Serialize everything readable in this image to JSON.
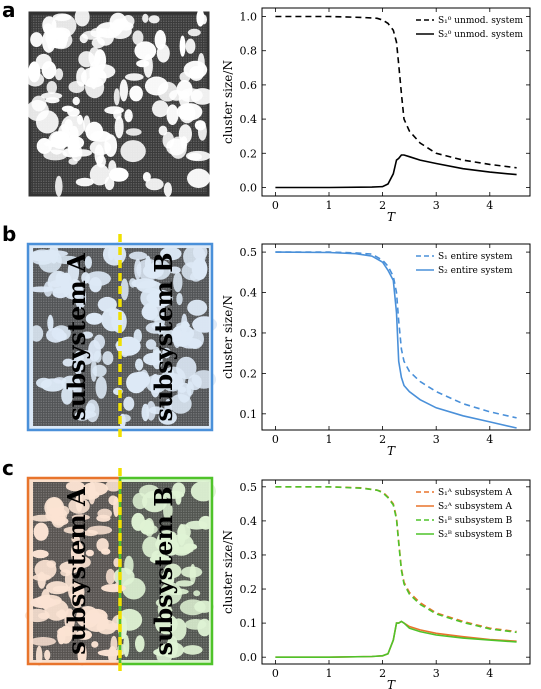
{
  "panels": [
    {
      "letter": "a",
      "lattice": {
        "subsystems": []
      }
    },
    {
      "letter": "b",
      "lattice": {
        "subsystems": [
          "subsystem A",
          "subsystem B"
        ],
        "frame_color": "#4a90d9"
      }
    },
    {
      "letter": "c",
      "lattice": {
        "subsystems": [
          "subsystem A",
          "subsystem B"
        ],
        "frame_colors": [
          "#e8742c",
          "#4fc32a"
        ]
      }
    }
  ],
  "chart_data": [
    {
      "type": "line",
      "xlabel": "T",
      "ylabel": "cluster size/N",
      "xlim": [
        -0.25,
        4.75
      ],
      "ylim": [
        -0.05,
        1.05
      ],
      "xticks": [
        "0",
        "1",
        "2",
        "3",
        "4"
      ],
      "yticks": [
        "0.0",
        "0.2",
        "0.4",
        "0.6",
        "0.8",
        "1.0"
      ],
      "legend_position": "top-right",
      "series": [
        {
          "name": "S₁⁰ unmod. system",
          "color": "#000000",
          "dash": true,
          "x": [
            0,
            1.0,
            1.6,
            1.9,
            2.0,
            2.1,
            2.2,
            2.26,
            2.3,
            2.35,
            2.4,
            2.5,
            2.7,
            3.0,
            3.5,
            4.0,
            4.5
          ],
          "y": [
            1.0,
            1.0,
            0.995,
            0.99,
            0.98,
            0.96,
            0.92,
            0.85,
            0.72,
            0.55,
            0.4,
            0.33,
            0.26,
            0.2,
            0.16,
            0.135,
            0.115
          ]
        },
        {
          "name": "S₂⁰ unmod. system",
          "color": "#000000",
          "dash": false,
          "x": [
            0,
            1.0,
            1.8,
            2.0,
            2.1,
            2.2,
            2.26,
            2.3,
            2.35,
            2.4,
            2.5,
            2.7,
            3.0,
            3.5,
            4.0,
            4.5
          ],
          "y": [
            0.0,
            0.0,
            0.002,
            0.005,
            0.02,
            0.08,
            0.16,
            0.17,
            0.19,
            0.19,
            0.18,
            0.16,
            0.14,
            0.11,
            0.09,
            0.075
          ]
        }
      ]
    },
    {
      "type": "line",
      "xlabel": "T",
      "ylabel": "cluster size/N",
      "xlim": [
        -0.25,
        4.75
      ],
      "ylim": [
        0.06,
        0.52
      ],
      "xticks": [
        "0",
        "1",
        "2",
        "3",
        "4"
      ],
      "yticks": [
        "0.1",
        "0.2",
        "0.3",
        "0.4",
        "0.5"
      ],
      "legend_position": "top-right",
      "series": [
        {
          "name": "S₁ entire system",
          "color": "#4a90d9",
          "dash": true,
          "x": [
            0,
            1.0,
            1.5,
            1.8,
            2.0,
            2.1,
            2.2,
            2.26,
            2.3,
            2.35,
            2.4,
            2.5,
            2.7,
            3.0,
            3.5,
            4.0,
            4.5
          ],
          "y": [
            0.5,
            0.5,
            0.498,
            0.495,
            0.48,
            0.465,
            0.44,
            0.4,
            0.33,
            0.26,
            0.23,
            0.205,
            0.18,
            0.155,
            0.125,
            0.105,
            0.09
          ]
        },
        {
          "name": "S₂ entire system",
          "color": "#4a90d9",
          "dash": false,
          "x": [
            0,
            1.0,
            1.5,
            1.8,
            2.0,
            2.1,
            2.2,
            2.26,
            2.3,
            2.35,
            2.4,
            2.5,
            2.7,
            3.0,
            3.5,
            4.0,
            4.5
          ],
          "y": [
            0.5,
            0.499,
            0.496,
            0.49,
            0.475,
            0.455,
            0.43,
            0.35,
            0.23,
            0.19,
            0.17,
            0.155,
            0.135,
            0.115,
            0.095,
            0.08,
            0.065
          ]
        }
      ]
    },
    {
      "type": "line",
      "xlabel": "T",
      "ylabel": "cluster size/N",
      "xlim": [
        -0.25,
        4.75
      ],
      "ylim": [
        -0.02,
        0.52
      ],
      "xticks": [
        "0",
        "1",
        "2",
        "3",
        "4"
      ],
      "yticks": [
        "0.0",
        "0.1",
        "0.2",
        "0.3",
        "0.4",
        "0.5"
      ],
      "legend_position": "top-right",
      "series": [
        {
          "name": "S₁ᴬ subsystem A",
          "color": "#e8742c",
          "dash": true,
          "x": [
            0,
            1.0,
            1.6,
            1.9,
            2.0,
            2.1,
            2.2,
            2.26,
            2.3,
            2.35,
            2.4,
            2.5,
            2.7,
            3.0,
            3.5,
            4.0,
            4.5
          ],
          "y": [
            0.5,
            0.5,
            0.497,
            0.49,
            0.485,
            0.47,
            0.45,
            0.41,
            0.34,
            0.26,
            0.22,
            0.19,
            0.16,
            0.13,
            0.105,
            0.085,
            0.075
          ]
        },
        {
          "name": "S₂ᴬ subsystem A",
          "color": "#e8742c",
          "dash": false,
          "x": [
            0,
            1.0,
            1.8,
            2.0,
            2.1,
            2.2,
            2.26,
            2.3,
            2.35,
            2.4,
            2.5,
            2.7,
            3.0,
            3.5,
            4.0,
            4.5
          ],
          "y": [
            0.0,
            0.0,
            0.002,
            0.004,
            0.01,
            0.05,
            0.1,
            0.1,
            0.105,
            0.1,
            0.09,
            0.08,
            0.07,
            0.06,
            0.052,
            0.047
          ]
        },
        {
          "name": "S₁ᴮ subsystem B",
          "color": "#4fc32a",
          "dash": true,
          "x": [
            0,
            1.0,
            1.6,
            1.9,
            2.0,
            2.1,
            2.2,
            2.26,
            2.3,
            2.35,
            2.4,
            2.5,
            2.7,
            3.0,
            3.5,
            4.0,
            4.5
          ],
          "y": [
            0.5,
            0.5,
            0.496,
            0.49,
            0.483,
            0.468,
            0.447,
            0.405,
            0.335,
            0.255,
            0.215,
            0.185,
            0.155,
            0.127,
            0.102,
            0.083,
            0.073
          ]
        },
        {
          "name": "S₂ᴮ subsystem B",
          "color": "#4fc32a",
          "dash": false,
          "x": [
            0,
            1.0,
            1.8,
            2.0,
            2.1,
            2.2,
            2.26,
            2.3,
            2.35,
            2.4,
            2.5,
            2.7,
            3.0,
            3.5,
            4.0,
            4.5
          ],
          "y": [
            0.0,
            0.0,
            0.002,
            0.004,
            0.01,
            0.05,
            0.1,
            0.1,
            0.105,
            0.1,
            0.085,
            0.075,
            0.065,
            0.056,
            0.05,
            0.045
          ]
        }
      ]
    }
  ]
}
